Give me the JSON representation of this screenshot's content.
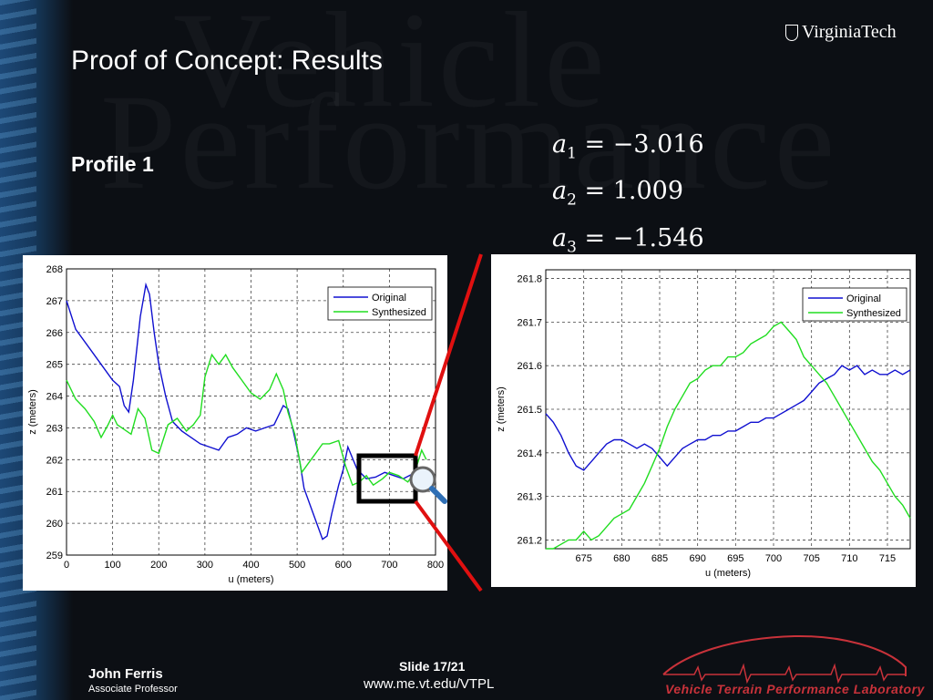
{
  "slide": {
    "title": "Proof of Concept: Results",
    "profile_label": "Profile 1",
    "watermark_text_1": "Vehicle",
    "watermark_text_2": "Performance",
    "equations": [
      {
        "var": "a",
        "sub": "1",
        "value": "= −3.016"
      },
      {
        "var": "a",
        "sub": "2",
        "value": "= 1.009"
      },
      {
        "var": "a",
        "sub": "3",
        "value": "= −1.546"
      }
    ]
  },
  "logo": {
    "text": "VirginiaTech"
  },
  "footer": {
    "name": "John Ferris",
    "role": "Associate Professor",
    "slide_number": "Slide 17/21",
    "url": "www.me.vt.edu/VTPL",
    "lab_name": "Vehicle Terrain Performance Laboratory"
  },
  "colors": {
    "original": "#1010d0",
    "synthesized": "#20dd20",
    "highlight": "#e01010",
    "lab": "#c8323a"
  },
  "chart_data": [
    {
      "type": "line",
      "xlabel": "u (meters)",
      "ylabel": "z (meters)",
      "xlim": [
        0,
        800
      ],
      "ylim": [
        259,
        268
      ],
      "xticks": [
        0,
        100,
        200,
        300,
        400,
        500,
        600,
        700,
        800
      ],
      "yticks": [
        259,
        260,
        261,
        262,
        263,
        264,
        265,
        266,
        267,
        268
      ],
      "grid": true,
      "legend": "top-right",
      "series": [
        {
          "name": "Original",
          "x": [
            0,
            20,
            50,
            80,
            100,
            115,
            125,
            135,
            145,
            160,
            172,
            180,
            190,
            200,
            215,
            230,
            250,
            270,
            290,
            310,
            330,
            340,
            350,
            370,
            390,
            410,
            430,
            450,
            470,
            480,
            490,
            505,
            515,
            530,
            545,
            555,
            565,
            575,
            590,
            600,
            610,
            630,
            650,
            670,
            690,
            710,
            730,
            750,
            760
          ],
          "y": [
            267,
            266.1,
            265.5,
            264.9,
            264.5,
            264.3,
            263.7,
            263.5,
            264.5,
            266.5,
            267.5,
            267.2,
            266,
            265,
            264,
            263.2,
            262.9,
            262.7,
            262.5,
            262.4,
            262.3,
            262.5,
            262.7,
            262.8,
            263,
            262.9,
            263,
            263.1,
            263.7,
            263.6,
            263,
            262,
            261.1,
            260.5,
            259.9,
            259.5,
            259.6,
            260.3,
            261.2,
            261.7,
            262.4,
            261.7,
            261.4,
            261.45,
            261.6,
            261.5,
            261.4,
            261.55,
            261.6
          ]
        },
        {
          "name": "Synthesized",
          "x": [
            0,
            20,
            40,
            60,
            75,
            90,
            100,
            110,
            120,
            140,
            155,
            170,
            185,
            200,
            220,
            240,
            260,
            275,
            290,
            300,
            315,
            330,
            345,
            360,
            380,
            400,
            420,
            440,
            455,
            470,
            480,
            495,
            510,
            525,
            540,
            555,
            570,
            590,
            605,
            620,
            635,
            650,
            665,
            685,
            700,
            720,
            740,
            755,
            770,
            780
          ],
          "y": [
            264.5,
            263.9,
            263.6,
            263.2,
            262.7,
            263.1,
            263.4,
            263.1,
            263,
            262.8,
            263.6,
            263.3,
            262.3,
            262.2,
            263.1,
            263.3,
            262.9,
            263.1,
            263.4,
            264.6,
            265.3,
            265,
            265.3,
            264.9,
            264.5,
            264.1,
            263.9,
            264.2,
            264.7,
            264.2,
            263.5,
            262.8,
            261.6,
            261.9,
            262.2,
            262.5,
            262.5,
            262.6,
            261.8,
            261.2,
            261.3,
            261.5,
            261.2,
            261.4,
            261.6,
            261.5,
            261.3,
            261.6,
            262.3,
            262
          ]
        }
      ]
    },
    {
      "type": "line",
      "xlabel": "u (meters)",
      "ylabel": "z (meters)",
      "xlim": [
        670,
        718
      ],
      "ylim": [
        261.18,
        261.82
      ],
      "xticks": [
        675,
        680,
        685,
        690,
        695,
        700,
        705,
        710,
        715
      ],
      "yticks": [
        261.2,
        261.3,
        261.4,
        261.5,
        261.6,
        261.7,
        261.8
      ],
      "grid": true,
      "legend": "top-right",
      "series": [
        {
          "name": "Original",
          "x": [
            670,
            671,
            672,
            673,
            674,
            675,
            676,
            677,
            678,
            679,
            680,
            681,
            682,
            683,
            684,
            685,
            686,
            687,
            688,
            689,
            690,
            691,
            692,
            693,
            694,
            695,
            696,
            697,
            698,
            699,
            700,
            701,
            702,
            703,
            704,
            705,
            706,
            707,
            708,
            709,
            710,
            711,
            712,
            713,
            714,
            715,
            716,
            717,
            718
          ],
          "y": [
            261.49,
            261.47,
            261.44,
            261.4,
            261.37,
            261.36,
            261.38,
            261.4,
            261.42,
            261.43,
            261.43,
            261.42,
            261.41,
            261.42,
            261.41,
            261.39,
            261.37,
            261.39,
            261.41,
            261.42,
            261.43,
            261.43,
            261.44,
            261.44,
            261.45,
            261.45,
            261.46,
            261.47,
            261.47,
            261.48,
            261.48,
            261.49,
            261.5,
            261.51,
            261.52,
            261.54,
            261.56,
            261.57,
            261.58,
            261.6,
            261.59,
            261.6,
            261.58,
            261.59,
            261.58,
            261.58,
            261.59,
            261.58,
            261.59
          ]
        },
        {
          "name": "Synthesized",
          "x": [
            670,
            671,
            672,
            673,
            674,
            675,
            676,
            677,
            678,
            679,
            680,
            681,
            682,
            683,
            684,
            685,
            686,
            687,
            688,
            689,
            690,
            691,
            692,
            693,
            694,
            695,
            696,
            697,
            698,
            699,
            700,
            701,
            702,
            703,
            704,
            705,
            706,
            707,
            708,
            709,
            710,
            711,
            712,
            713,
            714,
            715,
            716,
            717,
            718
          ],
          "y": [
            261.18,
            261.18,
            261.19,
            261.2,
            261.2,
            261.22,
            261.2,
            261.21,
            261.23,
            261.25,
            261.26,
            261.27,
            261.3,
            261.33,
            261.37,
            261.41,
            261.46,
            261.5,
            261.53,
            261.56,
            261.57,
            261.59,
            261.6,
            261.6,
            261.62,
            261.62,
            261.63,
            261.65,
            261.66,
            261.67,
            261.69,
            261.7,
            261.68,
            261.66,
            261.62,
            261.6,
            261.58,
            261.56,
            261.53,
            261.5,
            261.47,
            261.44,
            261.41,
            261.38,
            261.36,
            261.33,
            261.3,
            261.28,
            261.25
          ]
        }
      ]
    }
  ]
}
